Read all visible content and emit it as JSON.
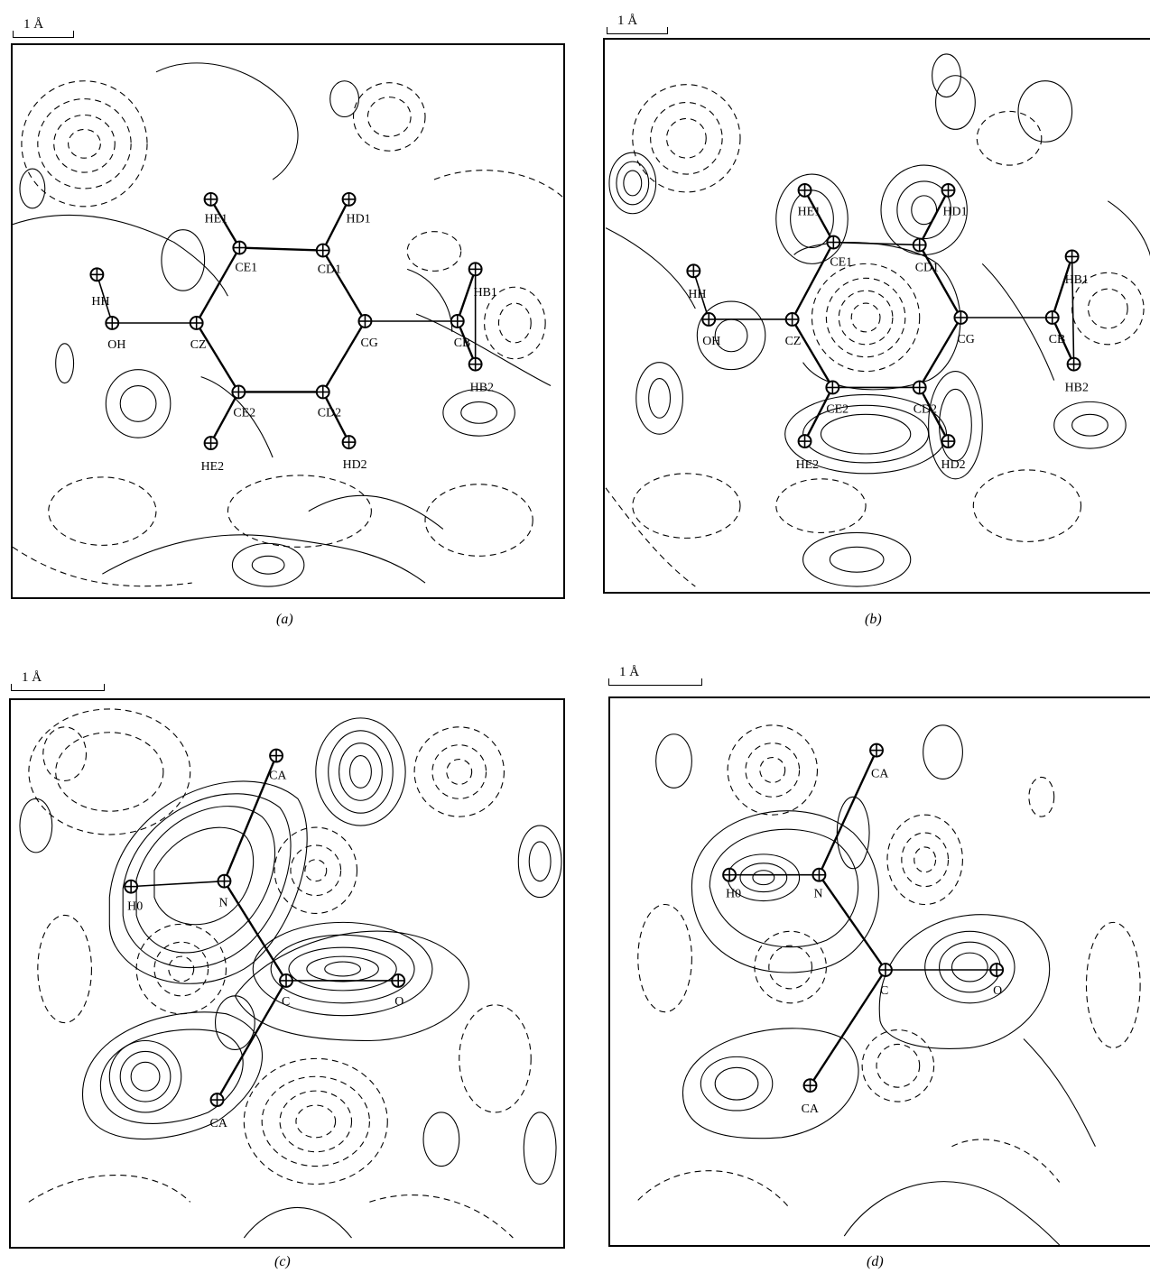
{
  "scale_label": "1 Å",
  "panels": [
    {
      "id": "a",
      "caption": "(a)",
      "atoms": [
        "HE1",
        "HD1",
        "CE1",
        "CD1",
        "HH",
        "HB1",
        "OH",
        "CZ",
        "CG",
        "CB",
        "CE2",
        "CD2",
        "HB2",
        "HE2",
        "HD2"
      ]
    },
    {
      "id": "b",
      "caption": "(b)",
      "atoms": [
        "HE1",
        "HD1",
        "CE1",
        "CD1",
        "HH",
        "HB1",
        "OH",
        "CZ",
        "CG",
        "CB",
        "CE2",
        "CD2",
        "HB2",
        "HE2",
        "HD2"
      ]
    },
    {
      "id": "c",
      "caption": "(c)",
      "atoms": [
        "CA",
        "H0",
        "N",
        "C",
        "O",
        "CA"
      ]
    },
    {
      "id": "d",
      "caption": "(d)",
      "atoms": [
        "CA",
        "H0",
        "N",
        "C",
        "O",
        "CA"
      ]
    }
  ]
}
